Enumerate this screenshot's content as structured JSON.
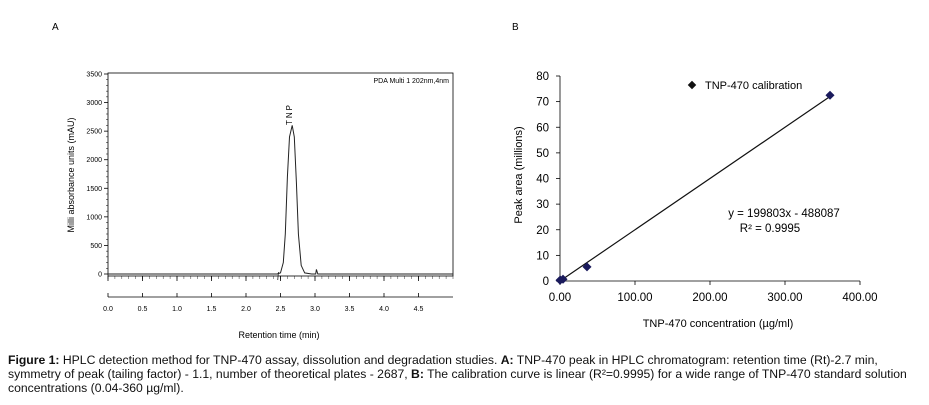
{
  "panels": {
    "a_label": "A",
    "b_label": "B"
  },
  "chart_data": [
    {
      "type": "line",
      "id": "A",
      "ylabel": "Milli absorbance units (mAU)",
      "xlabel": "Retention time (min)",
      "xlim": [
        0.0,
        5.0
      ],
      "ylim": [
        -200,
        3500
      ],
      "x_ticks": [
        "0.0",
        "0.5",
        "1.0",
        "1.5",
        "2.0",
        "2.5",
        "3.0",
        "3.5",
        "4.0",
        "4.5"
      ],
      "x_tick_values": [
        0.0,
        0.5,
        1.0,
        1.5,
        2.0,
        2.5,
        3.0,
        3.5,
        4.0,
        4.5
      ],
      "y_ticks": [
        "0",
        "500",
        "1000",
        "1500",
        "2000",
        "2500",
        "3000",
        "3500"
      ],
      "y_tick_values": [
        0,
        500,
        1000,
        1500,
        2000,
        2500,
        3000,
        3500
      ],
      "legend": "PDA Multi 1 202nm,4nm",
      "peak_label": "TNP",
      "series": [
        {
          "points": [
            [
              0.0,
              0
            ],
            [
              1.0,
              0
            ],
            [
              2.0,
              0
            ],
            [
              2.45,
              0
            ],
            [
              2.5,
              20
            ],
            [
              2.54,
              200
            ],
            [
              2.57,
              700
            ],
            [
              2.6,
              1700
            ],
            [
              2.63,
              2400
            ],
            [
              2.67,
              2600
            ],
            [
              2.7,
              2400
            ],
            [
              2.73,
              1600
            ],
            [
              2.76,
              700
            ],
            [
              2.8,
              150
            ],
            [
              2.85,
              20
            ],
            [
              2.95,
              0
            ],
            [
              3.01,
              0
            ],
            [
              3.02,
              80
            ],
            [
              3.04,
              0
            ],
            [
              3.3,
              0
            ],
            [
              4.0,
              0
            ],
            [
              5.0,
              0
            ]
          ],
          "color": "#222222"
        }
      ]
    },
    {
      "type": "scatter",
      "id": "B",
      "xlabel": "TNP-470 concentration (µg/ml)",
      "ylabel": "Peak area (millions)",
      "xlim": [
        0,
        400
      ],
      "ylim": [
        0,
        80
      ],
      "x_ticks": [
        "0.00",
        "100.00",
        "200.00",
        "300.00",
        "400.00"
      ],
      "x_tick_values": [
        0,
        100,
        200,
        300,
        400
      ],
      "y_ticks": [
        "0",
        "10",
        "20",
        "30",
        "40",
        "50",
        "60",
        "70",
        "80"
      ],
      "y_tick_values": [
        0,
        10,
        20,
        30,
        40,
        50,
        60,
        70,
        80
      ],
      "series": [
        {
          "name": "TNP-470 calibration",
          "x": [
            0.04,
            0.4,
            4,
            36,
            360
          ],
          "y": [
            0.3,
            0.4,
            0.7,
            5.5,
            72.5
          ],
          "color": "#1a1a5c"
        }
      ],
      "trendline": {
        "x": [
          0,
          360
        ],
        "y": [
          0,
          72.0
        ]
      },
      "equation": "y = 199803x - 488087",
      "r_squared": "R² = 0.9995"
    }
  ],
  "caption": {
    "fig_label": "Figure 1:",
    "text1": " HPLC detection method for TNP-470 assay, dissolution and degradation studies. ",
    "a_ref": "A:",
    "text2": " TNP-470 peak in HPLC chromatogram: retention time (Rt)-2.7 min, symmetry of peak (tailing factor) - 1.1, number of theoretical plates - 2687, ",
    "b_ref": "B:",
    "text3": " The calibration curve is linear (R²=0.9995) for a wide range of TNP-470 standard solution concentrations (0.04-360 µg/ml)."
  }
}
